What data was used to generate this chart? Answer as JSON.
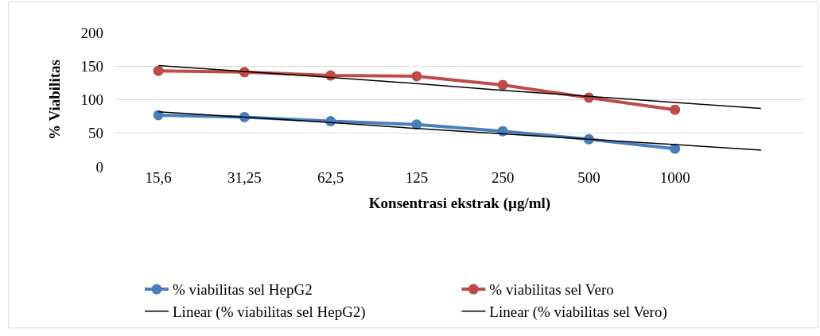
{
  "chart_data": {
    "type": "line",
    "xlabel": "Konsentrasi ekstrak (µg/ml)",
    "ylabel": "% Viabilitas",
    "categories": [
      "15,6",
      "31,25",
      "62,5",
      "125",
      "250",
      "500",
      "1000",
      null
    ],
    "series": [
      {
        "name": "% viabilitas sel HepG2",
        "color": "#4a7ebb",
        "marker": "circle",
        "values": [
          77,
          74,
          68,
          63,
          53,
          41,
          27,
          null
        ]
      },
      {
        "name": "% viabilitas sel Vero",
        "color": "#be4b48",
        "marker": "circle",
        "values": [
          143,
          141,
          136,
          135,
          122,
          103,
          85,
          null
        ]
      },
      {
        "name": "Linear (% viabilitas sel HepG2)",
        "color": "#000000",
        "marker": "none",
        "values": [
          82,
          74,
          66,
          57,
          49,
          41,
          33,
          25
        ]
      },
      {
        "name": "Linear (% viabilitas sel Vero)",
        "color": "#000000",
        "marker": "none",
        "values": [
          151,
          142,
          133,
          124,
          114,
          105,
          96,
          87
        ]
      }
    ],
    "ylim": [
      0,
      200
    ],
    "yticks": [
      0,
      50,
      100,
      150,
      200
    ],
    "grid": "y",
    "legend": "bottom",
    "line_style": "solid"
  }
}
